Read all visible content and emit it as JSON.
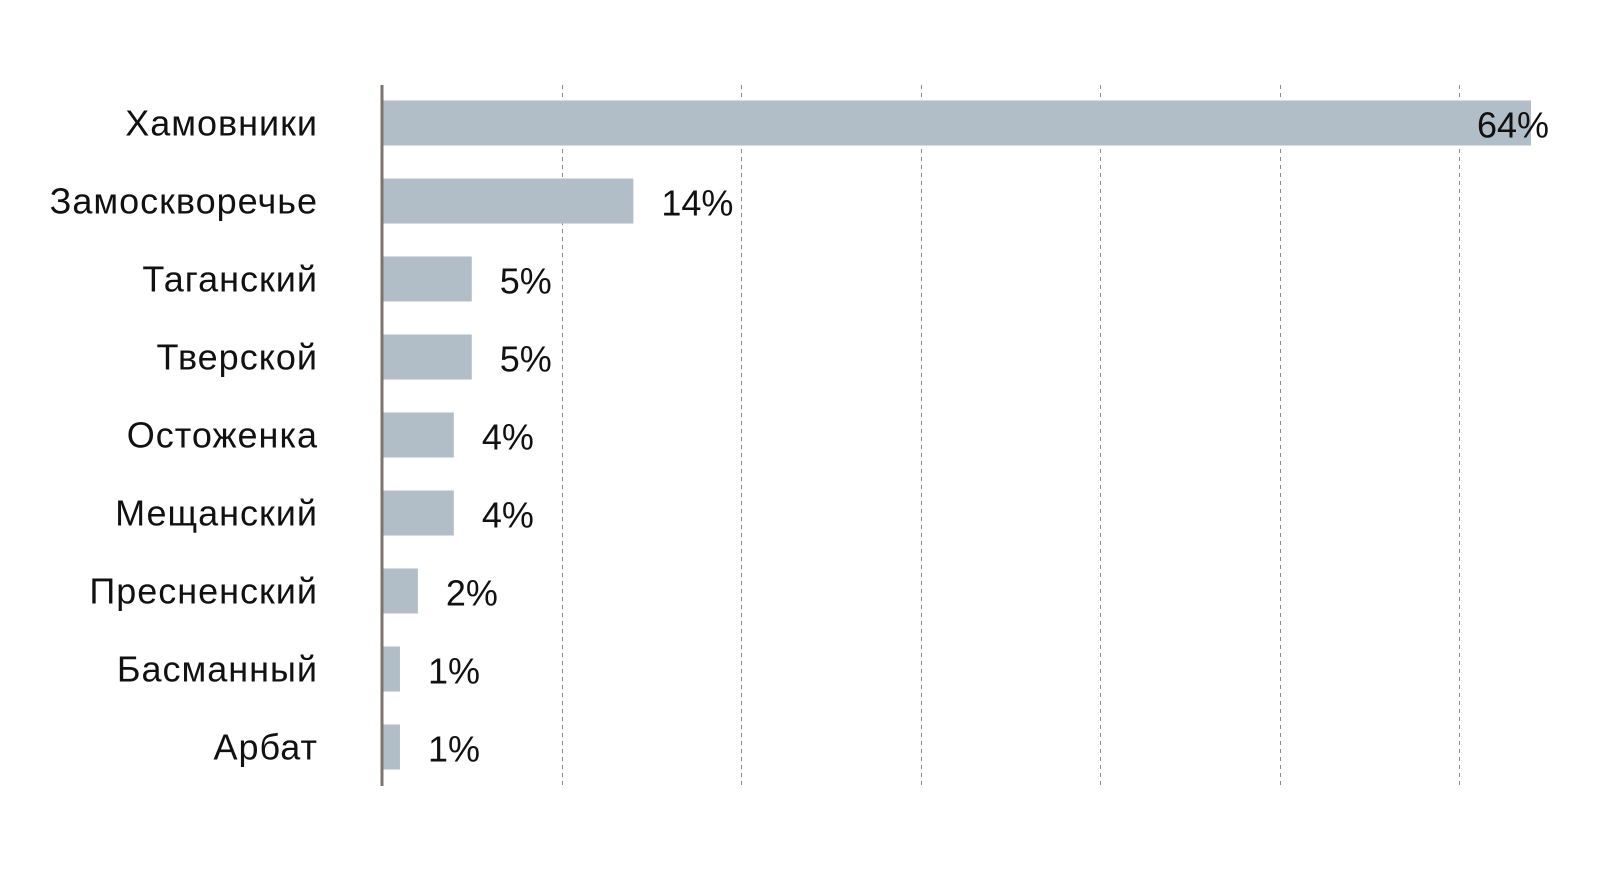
{
  "chart_data": {
    "type": "bar",
    "orientation": "horizontal",
    "categories": [
      "Хамовники",
      "Замоскворечье",
      "Таганский",
      "Тверской",
      "Остоженка",
      "Мещанский",
      "Пресненский",
      "Басманный",
      "Арбат"
    ],
    "values": [
      64,
      14,
      5,
      5,
      4,
      4,
      2,
      1,
      1
    ],
    "value_labels": [
      "64%",
      "14%",
      "5%",
      "5%",
      "4%",
      "4%",
      "2%",
      "1%",
      "1%"
    ],
    "title": "",
    "xlabel": "",
    "ylabel": "",
    "xlim": [
      0,
      64
    ],
    "grid_step": 10,
    "grid": true,
    "bar_color": "#b1bec7",
    "axis_color": "#7d7470",
    "grid_color": "#8a8a8a",
    "text_color": "#111111"
  }
}
